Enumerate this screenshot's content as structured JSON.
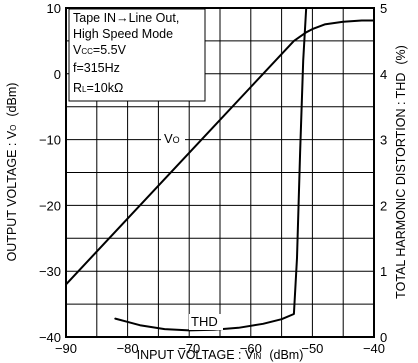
{
  "chart_data": {
    "type": "line",
    "xlabel": "INPUT VOLTAGE : VIN (dBm)",
    "xlabel_parts": {
      "main": "INPUT VOLTAGE : V",
      "sub": "IN",
      "unit": "(dBm)"
    },
    "ylabel_left": "OUTPUT VOLTAGE : VO (dBm)",
    "ylabel_left_parts": {
      "main": "OUTPUT VOLTAGE : V",
      "sub": "O",
      "unit": "(dBm)"
    },
    "ylabel_right": "TOTAL HARMONIC DISTORTION : THD (%)",
    "ylabel_right_parts": {
      "main": "TOTAL HARMONIC DISTORTION : THD",
      "unit": "(%)"
    },
    "xlim": [
      -90,
      -40
    ],
    "ylim_left": [
      -40,
      10
    ],
    "ylim_right": [
      0,
      5
    ],
    "x_ticks": [
      -90,
      -80,
      -70,
      -60,
      -50,
      -40
    ],
    "x_tick_labels": [
      "−90",
      "−80",
      "−70",
      "−60",
      "−50",
      "−40"
    ],
    "y_left_ticks": [
      -40,
      -30,
      -20,
      -10,
      0,
      10
    ],
    "y_left_tick_labels": [
      "−40",
      "−30",
      "−20",
      "−10",
      "0",
      "10"
    ],
    "y_right_ticks": [
      0,
      1,
      2,
      3,
      4,
      5
    ],
    "y_right_tick_labels": [
      "0",
      "1",
      "2",
      "3",
      "4",
      "5"
    ],
    "grid": true,
    "conditions": [
      {
        "text": "Tape IN→Line Out,"
      },
      {
        "text": "High Speed Mode"
      },
      {
        "main": "V",
        "sub": "CC",
        "rest": "=5.5V"
      },
      {
        "text": "f=315Hz"
      },
      {
        "main": "R",
        "sub": "L",
        "rest": "=10kΩ"
      }
    ],
    "series": [
      {
        "name": "VO",
        "label_main": "V",
        "label_sub": "O",
        "axis": "left",
        "x": [
          -90,
          -80,
          -70,
          -60,
          -53,
          -51,
          -50,
          -48,
          -45,
          -42,
          -40
        ],
        "y": [
          -32,
          -22,
          -12,
          -2,
          5,
          6.3,
          6.8,
          7.5,
          7.9,
          8.1,
          8.1
        ]
      },
      {
        "name": "THD",
        "label_main": "THD",
        "axis": "right",
        "x": [
          -82,
          -78,
          -74,
          -70,
          -66,
          -62,
          -58,
          -55,
          -53,
          -52.5,
          -52,
          -51.5,
          -51
        ],
        "y": [
          0.28,
          0.18,
          0.12,
          0.1,
          0.11,
          0.14,
          0.2,
          0.27,
          0.35,
          1.2,
          2.8,
          4.2,
          5.0
        ]
      }
    ]
  }
}
